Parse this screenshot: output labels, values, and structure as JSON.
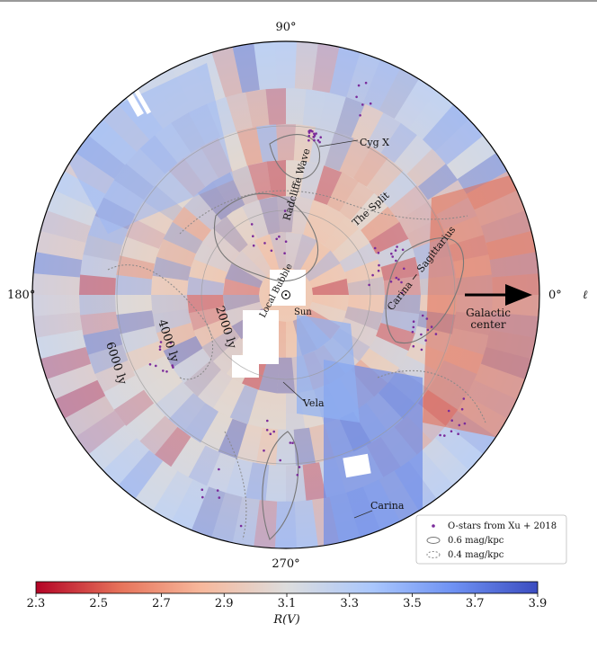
{
  "map": {
    "angle_labels": {
      "top": "90°",
      "left": "180°",
      "right": "0°",
      "bottom": "270°"
    },
    "longitude_symbol": "ℓ",
    "arrow_label": [
      "Galactic",
      "center"
    ],
    "sun_label": "Sun",
    "distance_labels": [
      "2000 ly",
      "4000 ly",
      "6000 ly"
    ],
    "features": [
      {
        "name": "Cyg X"
      },
      {
        "name": "Radcliffe Wave"
      },
      {
        "name": "The Split"
      },
      {
        "name": "Carina − Sagittarius"
      },
      {
        "name": "Local Bubble"
      },
      {
        "name": "Vela"
      },
      {
        "name": "Carina"
      }
    ]
  },
  "legend": {
    "items": [
      {
        "label": "O-stars from Xu + 2018",
        "symbol": "purple-dot"
      },
      {
        "label": "0.6 mag/kpc",
        "symbol": "solid-contour"
      },
      {
        "label": "0.4 mag/kpc",
        "symbol": "dotted-contour"
      }
    ]
  },
  "colorbar": {
    "title": "R(V)",
    "range": [
      2.3,
      3.9
    ],
    "ticks": [
      "2.3",
      "2.5",
      "2.7",
      "2.9",
      "3.1",
      "3.3",
      "3.5",
      "3.7",
      "3.9"
    ],
    "colors": [
      "#b40426",
      "#e7745b",
      "#f7b89c",
      "#dddddd",
      "#aac7fd",
      "#6f92f3",
      "#3b4cc0"
    ]
  }
}
